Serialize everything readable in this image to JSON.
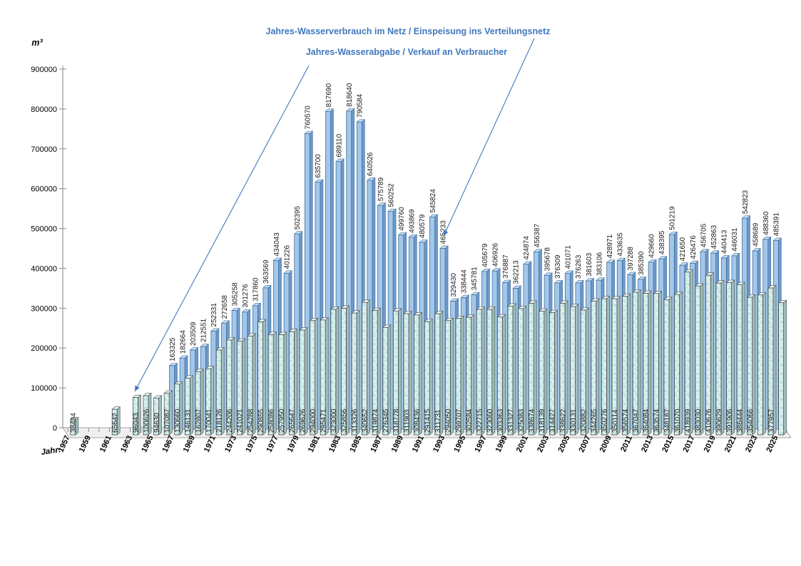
{
  "header": {
    "series1_title": "Jahres-Wasserverbrauch im Netz / Einspeisung ins Verteilungsnetz",
    "series2_title": "Jahres-Wasserabgabe / Verkauf an Verbraucher"
  },
  "colors": {
    "accent": "#4178BE",
    "series1_front": "#A3C7EA",
    "series1_side": "#6E99C9",
    "series1_top": "#C6DDF4",
    "series1_stroke": "#41719C",
    "series2_bg": "#DCF1F0",
    "series2_blob": "#B8E2E0",
    "series2_side": "#9FBFBF",
    "series2_top": "#EAF7F6",
    "series2_stroke": "#4D4D4D",
    "axis": "#8C8C8C",
    "floor_fill": "#EFEFEF",
    "label": "#1A1A1A"
  },
  "chart_data": {
    "type": "bar",
    "unit_label": "m³",
    "x_axis_label": "Jahr:",
    "ylim": [
      0,
      900000
    ],
    "yticks": [
      0,
      100000,
      200000,
      300000,
      400000,
      500000,
      600000,
      700000,
      800000,
      900000
    ],
    "x_range": [
      1957,
      2025
    ],
    "xtick_labels": [
      1957,
      1959,
      1961,
      1963,
      1965,
      1967,
      1969,
      1971,
      1973,
      1975,
      1977,
      1979,
      1981,
      1983,
      1985,
      1987,
      1989,
      1991,
      1993,
      1995,
      1997,
      1999,
      2001,
      2003,
      2005,
      2007,
      2009,
      2011,
      2013,
      2015,
      2017,
      2019,
      2021,
      2023,
      2025
    ],
    "legend_position": "top-annotations",
    "grid": false,
    "series": [
      {
        "name": "Jahres-Wasserverbrauch im Netz / Einspeisung ins Verteilungsnetz",
        "style": "smooth-blue",
        "points": [
          [
            1967,
            163325
          ],
          [
            1968,
            182664
          ],
          [
            1969,
            203509
          ],
          [
            1970,
            212551
          ],
          [
            1971,
            252331
          ],
          [
            1972,
            272658
          ],
          [
            1973,
            305258
          ],
          [
            1974,
            301276
          ],
          [
            1975,
            317860
          ],
          [
            1976,
            363569
          ],
          [
            1977,
            434043
          ],
          [
            1978,
            401226
          ],
          [
            1979,
            502395
          ],
          [
            1980,
            760570
          ],
          [
            1981,
            635700
          ],
          [
            1982,
            817690
          ],
          [
            1983,
            689110
          ],
          [
            1984,
            818640
          ],
          [
            1985,
            790584
          ],
          [
            1986,
            640526
          ],
          [
            1987,
            575789
          ],
          [
            1988,
            560252
          ],
          [
            1989,
            499760
          ],
          [
            1990,
            493869
          ],
          [
            1991,
            480579
          ],
          [
            1992,
            545824
          ],
          [
            1993,
            465233
          ],
          [
            1994,
            329430
          ],
          [
            1995,
            338444
          ],
          [
            1996,
            345781
          ],
          [
            1997,
            405679
          ],
          [
            1998,
            406926
          ],
          [
            1999,
            376887
          ],
          [
            2000,
            362213
          ],
          [
            2001,
            424874
          ],
          [
            2002,
            456387
          ],
          [
            2003,
            395678
          ],
          [
            2004,
            376309
          ],
          [
            2005,
            401071
          ],
          [
            2006,
            376263
          ],
          [
            2007,
            381603
          ],
          [
            2008,
            383106
          ],
          [
            2009,
            428971
          ],
          [
            2010,
            433635
          ],
          [
            2011,
            397288
          ],
          [
            2012,
            385390
          ],
          [
            2013,
            429660
          ],
          [
            2014,
            438395
          ],
          [
            2015,
            501219
          ],
          [
            2016,
            421650
          ],
          [
            2017,
            426476
          ],
          [
            2018,
            456705
          ],
          [
            2019,
            452863
          ],
          [
            2020,
            440413
          ],
          [
            2021,
            446031
          ],
          [
            2022,
            542823
          ],
          [
            2023,
            458689
          ],
          [
            2024,
            488360
          ],
          [
            2025,
            485391
          ]
        ],
        "hidden_label_years": []
      },
      {
        "name": "Jahres-Wasserabgabe / Verkauf an Verbraucher",
        "style": "textured-aqua",
        "points": [
          [
            1957,
            38434
          ],
          [
            1961,
            65642
          ],
          [
            1963,
            96043
          ],
          [
            1964,
            100626
          ],
          [
            1965,
            94630
          ],
          [
            1966,
            107087
          ],
          [
            1967,
            130660
          ],
          [
            1968,
            146131
          ],
          [
            1969,
            162807
          ],
          [
            1970,
            170041
          ],
          [
            1971,
            218126
          ],
          [
            1972,
            244206
          ],
          [
            1973,
            241021
          ],
          [
            1974,
            254288
          ],
          [
            1975,
            290855
          ],
          [
            1976,
            258086
          ],
          [
            1977,
            257950
          ],
          [
            1978,
            265647
          ],
          [
            1979,
            269626
          ],
          [
            1980,
            294000
          ],
          [
            1981,
            295471
          ],
          [
            1982,
            323000
          ],
          [
            1983,
            325856
          ],
          [
            1984,
            313326
          ],
          [
            1985,
            340652
          ],
          [
            1986,
            319874
          ],
          [
            1987,
            276345
          ],
          [
            1988,
            318778
          ],
          [
            1989,
            311903
          ],
          [
            1990,
            308436
          ],
          [
            1991,
            291415
          ],
          [
            1992,
            311731
          ],
          [
            1993,
            294050
          ],
          [
            1994,
            299707
          ],
          [
            1995,
            302584
          ],
          [
            1996,
            322715
          ],
          [
            1997,
            323060
          ],
          [
            1998,
            303363
          ],
          [
            1999,
            331327
          ],
          [
            2000,
            325083
          ],
          [
            2001,
            338674
          ],
          [
            2002,
            318139
          ],
          [
            2003,
            314427
          ],
          [
            2004,
            338622
          ],
          [
            2005,
            330131
          ],
          [
            2006,
            320882
          ],
          [
            2007,
            344265
          ],
          [
            2008,
            350276
          ],
          [
            2009,
            350114
          ],
          [
            2010,
            356574
          ],
          [
            2011,
            367047
          ],
          [
            2012,
            364084
          ],
          [
            2013,
            363574
          ],
          [
            2014,
            348187
          ],
          [
            2015,
            361070
          ],
          [
            2016,
            418939
          ],
          [
            2017,
            383030
          ],
          [
            2018,
            410676
          ],
          [
            2019,
            390629
          ],
          [
            2020,
            391906
          ],
          [
            2021,
            386444
          ],
          [
            2022,
            354066
          ],
          [
            2023,
            360000
          ],
          [
            2024,
            377957
          ],
          [
            2025,
            340000
          ]
        ],
        "hidden_label_years": [
          2023,
          2025
        ]
      }
    ]
  }
}
